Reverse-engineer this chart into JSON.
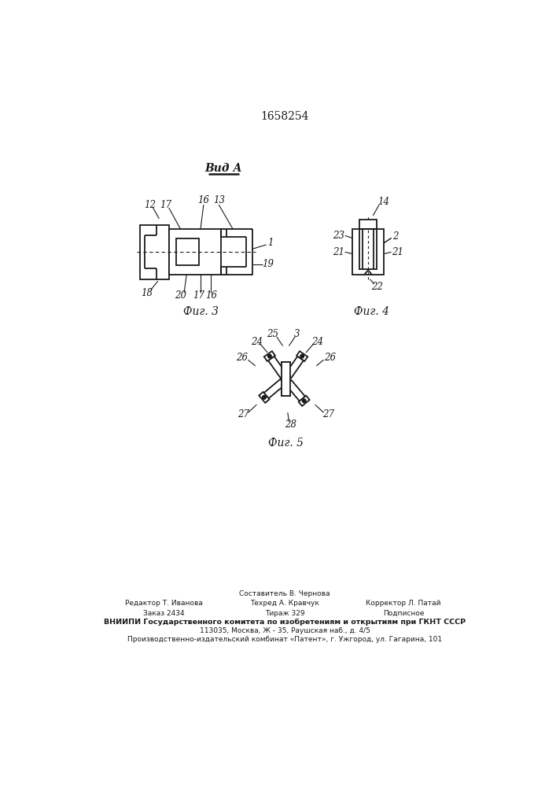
{
  "title": "1658254",
  "bg_color": "#ffffff",
  "lc": "#1a1a1a",
  "fig3_caption": "Фиг. 3",
  "fig4_caption": "Фиг. 4",
  "fig5_caption": "Фиг. 5",
  "vid_a_label": "Вид А",
  "footer_line1": "Составитель В. Чернова",
  "footer_line2_left": "Редактор Т. Иванова",
  "footer_line2_mid": "Техред А. Кравчук",
  "footer_line2_right": "Корректор Л. Патай",
  "footer_line3_left": "Заказ 2434",
  "footer_line3_mid": "Тираж 329",
  "footer_line3_right": "Подписное",
  "footer_line4": "ВНИИПИ Государственного комитета по изобретениям и открытиям при ГКНТ СССР",
  "footer_line5": "113035, Москва, Ж - 35, Раушская наб., д. 4/5",
  "footer_line6": "Производственно-издательский комбинат «Патент», г. Ужгород, ул. Гагарина, 101"
}
